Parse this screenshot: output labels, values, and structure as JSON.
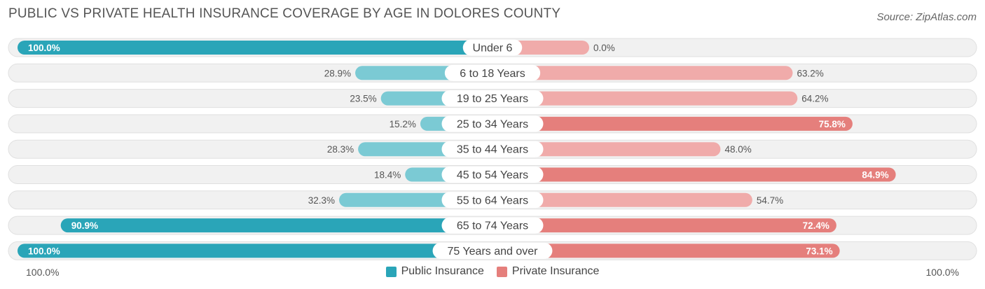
{
  "title": "PUBLIC VS PRIVATE HEALTH INSURANCE COVERAGE BY AGE IN DOLORES COUNTY",
  "source": "Source: ZipAtlas.com",
  "axis": {
    "left_label": "100.0%",
    "right_label": "100.0%"
  },
  "legend": {
    "public_label": "Public Insurance",
    "private_label": "Private Insurance"
  },
  "colors": {
    "public_dark": "#2aa5b8",
    "public_light": "#7bcad4",
    "private_dark": "#e57f7c",
    "private_light": "#f0abaa",
    "track": "#f1f1f1",
    "track_border": "#e0e0e0"
  },
  "chart_data": {
    "type": "bar",
    "orientation": "horizontal-diverging",
    "title": "PUBLIC VS PRIVATE HEALTH INSURANCE COVERAGE BY AGE IN DOLORES COUNTY",
    "categories": [
      "Under 6",
      "6 to 18 Years",
      "19 to 25 Years",
      "25 to 34 Years",
      "35 to 44 Years",
      "45 to 54 Years",
      "55 to 64 Years",
      "65 to 74 Years",
      "75 Years and over"
    ],
    "series": [
      {
        "name": "Public Insurance",
        "values": [
          100.0,
          28.9,
          23.5,
          15.2,
          28.3,
          18.4,
          32.3,
          90.9,
          100.0
        ],
        "labels": [
          "100.0%",
          "28.9%",
          "23.5%",
          "15.2%",
          "28.3%",
          "18.4%",
          "32.3%",
          "90.9%",
          "100.0%"
        ]
      },
      {
        "name": "Private Insurance",
        "values": [
          0.0,
          63.2,
          64.2,
          75.8,
          48.0,
          84.9,
          54.7,
          72.4,
          73.1
        ],
        "labels": [
          "0.0%",
          "63.2%",
          "64.2%",
          "75.8%",
          "48.0%",
          "84.9%",
          "54.7%",
          "72.4%",
          "73.1%"
        ]
      }
    ],
    "xlim": [
      -100,
      100
    ],
    "xlabel": "",
    "ylabel": ""
  }
}
